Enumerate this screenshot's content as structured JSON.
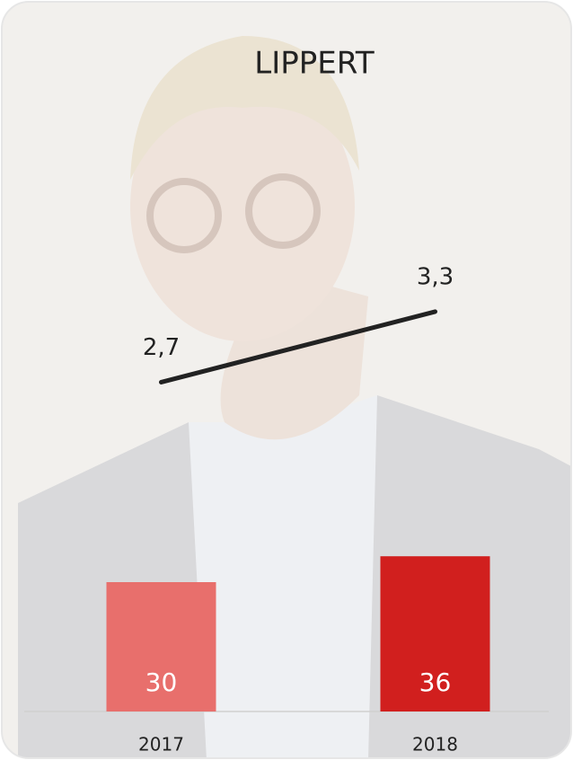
{
  "chart_data": {
    "type": "bar-line",
    "title": "LIPPERT",
    "categories": [
      "2017",
      "2018"
    ],
    "series": [
      {
        "type": "bar",
        "colors": [
          "#e86f6c",
          "#d11f1e"
        ],
        "values": [
          30,
          36
        ],
        "value_label_color": "#ffffff"
      },
      {
        "type": "line",
        "axis": "y2",
        "color": "#222222",
        "values": [
          2.7,
          3.3
        ],
        "value_labels": [
          "2,7",
          "3,3"
        ]
      }
    ],
    "ylim": [
      0,
      150
    ],
    "y2lim": [
      -0.1,
      5.4
    ]
  }
}
